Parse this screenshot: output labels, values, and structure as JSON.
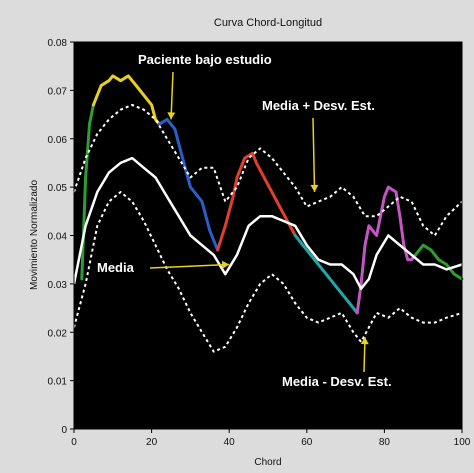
{
  "chart_data": {
    "type": "line",
    "title": "Curva Chord-Longitud",
    "xlabel": "Chord",
    "ylabel": "Movimiento Normalizado",
    "xlim": [
      0,
      100
    ],
    "ylim": [
      0,
      0.08
    ],
    "x_ticks": [
      "0",
      "20",
      "40",
      "60",
      "80",
      "100"
    ],
    "y_ticks": [
      "0",
      "0.01",
      "0.02",
      "0.03",
      "0.04",
      "0.05",
      "0.06",
      "0.07",
      "0.08"
    ],
    "grid": false,
    "background": "#000000",
    "series": [
      {
        "name": "Paciente bajo estudio",
        "style": "solid-multicolor",
        "segments": [
          {
            "color": "#2e9f2e",
            "x": [
              2,
              3,
              4,
              5
            ],
            "y": [
              0.031,
              0.052,
              0.063,
              0.067
            ]
          },
          {
            "color": "#e8d21a",
            "x": [
              5,
              7,
              9,
              10,
              12,
              14,
              16,
              18,
              20,
              21,
              22
            ],
            "y": [
              0.067,
              0.071,
              0.072,
              0.073,
              0.072,
              0.073,
              0.071,
              0.069,
              0.067,
              0.064,
              0.063
            ]
          },
          {
            "color": "#2b5fc7",
            "x": [
              22,
              24,
              26,
              28,
              30,
              31,
              33,
              34,
              35,
              37
            ],
            "y": [
              0.063,
              0.064,
              0.062,
              0.056,
              0.05,
              0.049,
              0.047,
              0.044,
              0.041,
              0.037
            ]
          },
          {
            "color": "#e0402a",
            "x": [
              37,
              39,
              41,
              42,
              44,
              46,
              47,
              49,
              51,
              53,
              55,
              57
            ],
            "y": [
              0.037,
              0.042,
              0.048,
              0.052,
              0.056,
              0.057,
              0.055,
              0.052,
              0.049,
              0.046,
              0.043,
              0.04
            ]
          },
          {
            "color": "#20a8a8",
            "x": [
              57,
              59,
              61,
              63,
              65,
              67,
              69,
              71,
              73
            ],
            "y": [
              0.04,
              0.038,
              0.036,
              0.034,
              0.032,
              0.03,
              0.028,
              0.026,
              0.024
            ]
          },
          {
            "color": "#c456c4",
            "x": [
              73,
              74,
              75,
              76,
              78,
              80,
              81,
              83,
              84,
              85,
              86,
              87,
              88
            ],
            "y": [
              0.024,
              0.03,
              0.038,
              0.042,
              0.04,
              0.048,
              0.05,
              0.049,
              0.044,
              0.038,
              0.035,
              0.035,
              0.036
            ]
          },
          {
            "color": "#2e9f2e",
            "x": [
              88,
              90,
              92,
              94,
              96,
              98,
              100
            ],
            "y": [
              0.036,
              0.038,
              0.037,
              0.035,
              0.034,
              0.032,
              0.031
            ]
          }
        ]
      },
      {
        "name": "Media",
        "style": "solid",
        "color": "#ffffff",
        "x": [
          0,
          3,
          6,
          9,
          12,
          15,
          18,
          21,
          24,
          27,
          30,
          33,
          36,
          39,
          42,
          45,
          48,
          51,
          54,
          57,
          60,
          63,
          66,
          69,
          72,
          74,
          76,
          78,
          81,
          84,
          87,
          90,
          93,
          96,
          100
        ],
        "y": [
          0.03,
          0.042,
          0.049,
          0.053,
          0.055,
          0.056,
          0.054,
          0.052,
          0.048,
          0.044,
          0.04,
          0.038,
          0.036,
          0.032,
          0.036,
          0.042,
          0.044,
          0.044,
          0.043,
          0.042,
          0.038,
          0.035,
          0.034,
          0.034,
          0.032,
          0.029,
          0.031,
          0.036,
          0.04,
          0.038,
          0.036,
          0.034,
          0.034,
          0.033,
          0.034
        ]
      },
      {
        "name": "Media + Desv. Est.",
        "style": "dashed",
        "color": "#ffffff",
        "x": [
          0,
          3,
          6,
          9,
          12,
          15,
          18,
          21,
          24,
          27,
          30,
          33,
          36,
          39,
          42,
          45,
          48,
          51,
          54,
          57,
          60,
          63,
          66,
          69,
          72,
          75,
          78,
          81,
          84,
          87,
          90,
          93,
          96,
          100
        ],
        "y": [
          0.049,
          0.056,
          0.061,
          0.064,
          0.066,
          0.067,
          0.066,
          0.064,
          0.06,
          0.056,
          0.052,
          0.054,
          0.054,
          0.047,
          0.05,
          0.056,
          0.058,
          0.056,
          0.053,
          0.05,
          0.046,
          0.047,
          0.048,
          0.05,
          0.048,
          0.044,
          0.044,
          0.046,
          0.048,
          0.047,
          0.042,
          0.04,
          0.044,
          0.047
        ]
      },
      {
        "name": "Media - Desv. Est.",
        "style": "dashed",
        "color": "#ffffff",
        "x": [
          0,
          3,
          6,
          9,
          12,
          15,
          18,
          21,
          24,
          27,
          30,
          33,
          36,
          39,
          42,
          45,
          48,
          51,
          54,
          57,
          60,
          63,
          66,
          69,
          72,
          74,
          76,
          78,
          81,
          84,
          87,
          90,
          93,
          96,
          100
        ],
        "y": [
          0.021,
          0.03,
          0.042,
          0.047,
          0.049,
          0.047,
          0.043,
          0.038,
          0.033,
          0.029,
          0.024,
          0.02,
          0.016,
          0.017,
          0.021,
          0.026,
          0.03,
          0.032,
          0.03,
          0.026,
          0.023,
          0.022,
          0.023,
          0.024,
          0.02,
          0.018,
          0.021,
          0.024,
          0.023,
          0.025,
          0.023,
          0.022,
          0.022,
          0.023,
          0.024
        ]
      }
    ],
    "annotations": [
      {
        "text": "Paciente bajo estudio",
        "arrow_to": [
          25,
          0.064
        ],
        "color": "#ffffff",
        "arrow_color": "#e8d21a"
      },
      {
        "text": "Media + Desv. Est.",
        "arrow_to": [
          62,
          0.049
        ],
        "color": "#ffffff",
        "arrow_color": "#e8d21a"
      },
      {
        "text": "Media",
        "arrow_to": [
          40,
          0.034
        ],
        "color": "#ffffff",
        "arrow_color": "#e8d21a"
      },
      {
        "text": "Media - Desv. Est.",
        "arrow_to": [
          75,
          0.019
        ],
        "color": "#ffffff",
        "arrow_color": "#e8d21a"
      }
    ]
  }
}
